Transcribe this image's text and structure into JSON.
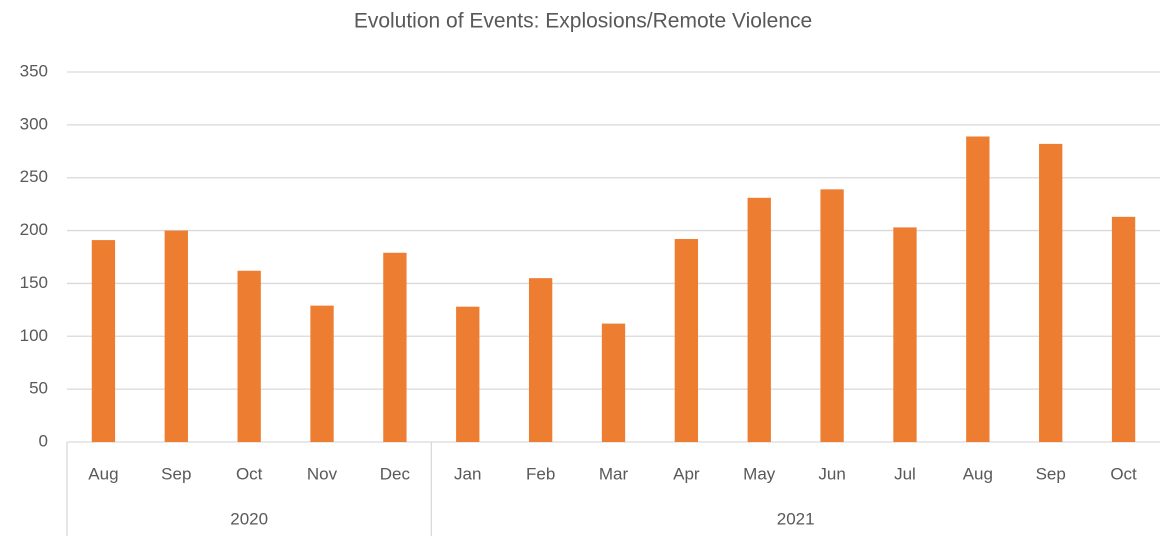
{
  "chart_data": {
    "type": "bar",
    "title": "Evolution of Events: Explosions/Remote Violence",
    "categories": [
      "Aug",
      "Sep",
      "Oct",
      "Nov",
      "Dec",
      "Jan",
      "Feb",
      "Mar",
      "Apr",
      "May",
      "Jun",
      "Jul",
      "Aug",
      "Sep",
      "Oct"
    ],
    "groups": [
      {
        "label": "2020",
        "size": 5
      },
      {
        "label": "2021",
        "size": 10
      }
    ],
    "values": [
      191,
      200,
      162,
      129,
      179,
      128,
      155,
      112,
      192,
      231,
      239,
      203,
      289,
      282,
      213
    ],
    "color": "#ed7d31",
    "ylim": [
      0,
      350
    ],
    "yticks": [
      0,
      50,
      100,
      150,
      200,
      250,
      300,
      350
    ],
    "grid": true
  }
}
